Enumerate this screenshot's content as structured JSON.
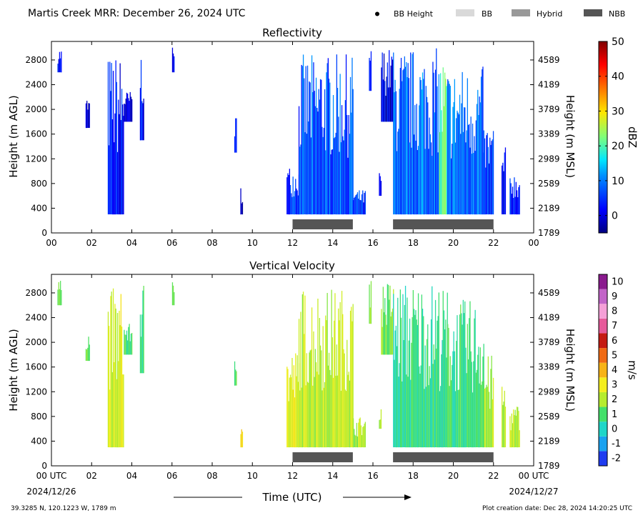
{
  "header": {
    "title": "Martis Creek MRR:  December 26, 2024 UTC",
    "legend": [
      {
        "label": "BB Height",
        "kind": "dot",
        "color": "#000000"
      },
      {
        "label": "BB",
        "kind": "bar",
        "color": "#d9d9d9"
      },
      {
        "label": "Hybrid",
        "kind": "bar",
        "color": "#999999"
      },
      {
        "label": "NBB",
        "kind": "bar",
        "color": "#555555"
      }
    ]
  },
  "footer": {
    "location": "39.3285 N, 120.1223 W, 1789 m",
    "created": "Plot creation date: Dec 28, 2024 14:20:25 UTC",
    "date_start": "2024/12/26",
    "date_end": "2024/12/27",
    "xlabel": "Time (UTC)"
  },
  "chart_data": [
    {
      "type": "heatmap",
      "title": "Reflectivity",
      "ylabel": "Height (m AGL)",
      "ylabel_right": "Height (m MSL)",
      "xlim": [
        0,
        24
      ],
      "ylim": [
        0,
        3100
      ],
      "x_ticks": [
        "00",
        "02",
        "04",
        "06",
        "08",
        "10",
        "12",
        "14",
        "16",
        "18",
        "20",
        "22",
        "00"
      ],
      "y_ticks": [
        0,
        400,
        800,
        1200,
        1600,
        2000,
        2400,
        2800
      ],
      "y_ticks_right": [
        1789,
        2189,
        2589,
        2989,
        3389,
        3789,
        4189,
        4589
      ],
      "colorbar": {
        "label": "dBZ",
        "min": -5,
        "max": 50,
        "ticks": [
          0,
          10,
          20,
          30,
          40,
          50
        ],
        "colormap": "jet"
      },
      "nbb_periods": [
        [
          12,
          15
        ],
        [
          17,
          22
        ]
      ],
      "echo_columns": [
        {
          "t": [
            0.3,
            0.5
          ],
          "h": [
            2600,
            3000
          ],
          "v": 2
        },
        {
          "t": [
            1.7,
            1.9
          ],
          "h": [
            1700,
            2200
          ],
          "v": 0
        },
        {
          "t": [
            2.8,
            3.6
          ],
          "h": [
            300,
            2900
          ],
          "v": 3
        },
        {
          "t": [
            3.6,
            4.0
          ],
          "h": [
            1800,
            2300
          ],
          "v": 0
        },
        {
          "t": [
            4.4,
            4.6
          ],
          "h": [
            1500,
            3000
          ],
          "v": 2
        },
        {
          "t": [
            6.0,
            6.1
          ],
          "h": [
            2600,
            3000
          ],
          "v": 3
        },
        {
          "t": [
            9.1,
            9.2
          ],
          "h": [
            1300,
            1900
          ],
          "v": 0
        },
        {
          "t": [
            9.4,
            9.5
          ],
          "h": [
            300,
            800
          ],
          "v": 1
        },
        {
          "t": [
            11.7,
            12.3
          ],
          "h": [
            300,
            1100
          ],
          "v": 4
        },
        {
          "t": [
            12.3,
            15.0
          ],
          "h": [
            300,
            2900
          ],
          "v": 7
        },
        {
          "t": [
            15.0,
            15.6
          ],
          "h": [
            300,
            700
          ],
          "v": 4
        },
        {
          "t": [
            15.8,
            15.9
          ],
          "h": [
            2300,
            3000
          ],
          "v": 3
        },
        {
          "t": [
            16.3,
            16.4
          ],
          "h": [
            600,
            1000
          ],
          "v": 3
        },
        {
          "t": [
            16.4,
            17.0
          ],
          "h": [
            1800,
            3000
          ],
          "v": 1
        },
        {
          "t": [
            17.0,
            19.3
          ],
          "h": [
            300,
            3000
          ],
          "v": 9
        },
        {
          "t": [
            19.3,
            19.7
          ],
          "h": [
            300,
            2900
          ],
          "v": 20
        },
        {
          "t": [
            19.7,
            21.5
          ],
          "h": [
            300,
            2700
          ],
          "v": 9
        },
        {
          "t": [
            21.5,
            22.0
          ],
          "h": [
            300,
            1800
          ],
          "v": 5
        },
        {
          "t": [
            22.4,
            22.6
          ],
          "h": [
            300,
            1400
          ],
          "v": 3
        },
        {
          "t": [
            22.8,
            23.3
          ],
          "h": [
            300,
            1000
          ],
          "v": 3
        }
      ]
    },
    {
      "type": "heatmap",
      "title": "Vertical Velocity",
      "ylabel": "Height (m AGL)",
      "ylabel_right": "Height (m MSL)",
      "xlim": [
        0,
        24
      ],
      "ylim": [
        0,
        3100
      ],
      "x_ticks": [
        "00 UTC",
        "02",
        "04",
        "06",
        "08",
        "10",
        "12",
        "14",
        "16",
        "18",
        "20",
        "22",
        "00 UTC"
      ],
      "y_ticks": [
        0,
        400,
        800,
        1200,
        1600,
        2000,
        2400,
        2800
      ],
      "y_ticks_right": [
        1789,
        2189,
        2589,
        2989,
        3389,
        3789,
        4189,
        4589
      ],
      "colorbar": {
        "label": "m/s",
        "min": -2,
        "max": 10,
        "ticks": [
          -2,
          -1,
          0,
          1,
          2,
          3,
          4,
          5,
          6,
          7,
          8,
          9,
          10
        ],
        "colormap": "velocity"
      },
      "nbb_periods": [
        [
          12,
          15
        ],
        [
          17,
          22
        ]
      ],
      "echo_columns": [
        {
          "t": [
            0.3,
            0.5
          ],
          "h": [
            2600,
            3000
          ],
          "v": 1
        },
        {
          "t": [
            1.7,
            1.9
          ],
          "h": [
            1700,
            2200
          ],
          "v": 1.5
        },
        {
          "t": [
            2.8,
            3.6
          ],
          "h": [
            300,
            2900
          ],
          "v": 2.5
        },
        {
          "t": [
            3.6,
            4.0
          ],
          "h": [
            1800,
            2300
          ],
          "v": 1
        },
        {
          "t": [
            4.4,
            4.6
          ],
          "h": [
            1500,
            3000
          ],
          "v": 1
        },
        {
          "t": [
            6.0,
            6.1
          ],
          "h": [
            2600,
            3000
          ],
          "v": 1
        },
        {
          "t": [
            9.1,
            9.2
          ],
          "h": [
            1300,
            1900
          ],
          "v": 1.5
        },
        {
          "t": [
            9.4,
            9.5
          ],
          "h": [
            300,
            800
          ],
          "v": 3.5
        },
        {
          "t": [
            11.7,
            12.3
          ],
          "h": [
            300,
            1900
          ],
          "v": 2.5
        },
        {
          "t": [
            12.3,
            15.0
          ],
          "h": [
            300,
            2900
          ],
          "v": 2.2
        },
        {
          "t": [
            15.0,
            15.6
          ],
          "h": [
            300,
            800
          ],
          "v": 2
        },
        {
          "t": [
            15.8,
            15.9
          ],
          "h": [
            2300,
            3000
          ],
          "v": 2
        },
        {
          "t": [
            16.3,
            16.4
          ],
          "h": [
            600,
            1000
          ],
          "v": 2
        },
        {
          "t": [
            16.4,
            17.0
          ],
          "h": [
            1800,
            3000
          ],
          "v": 1.5
        },
        {
          "t": [
            17.0,
            19.3
          ],
          "h": [
            300,
            3000
          ],
          "v": 0.6
        },
        {
          "t": [
            19.3,
            19.7
          ],
          "h": [
            300,
            2900
          ],
          "v": 0.4
        },
        {
          "t": [
            19.7,
            21.5
          ],
          "h": [
            300,
            2700
          ],
          "v": 0.8
        },
        {
          "t": [
            21.5,
            22.0
          ],
          "h": [
            300,
            1800
          ],
          "v": 2
        },
        {
          "t": [
            22.4,
            22.6
          ],
          "h": [
            300,
            1400
          ],
          "v": 2
        },
        {
          "t": [
            22.8,
            23.3
          ],
          "h": [
            300,
            1000
          ],
          "v": 2
        }
      ]
    }
  ]
}
